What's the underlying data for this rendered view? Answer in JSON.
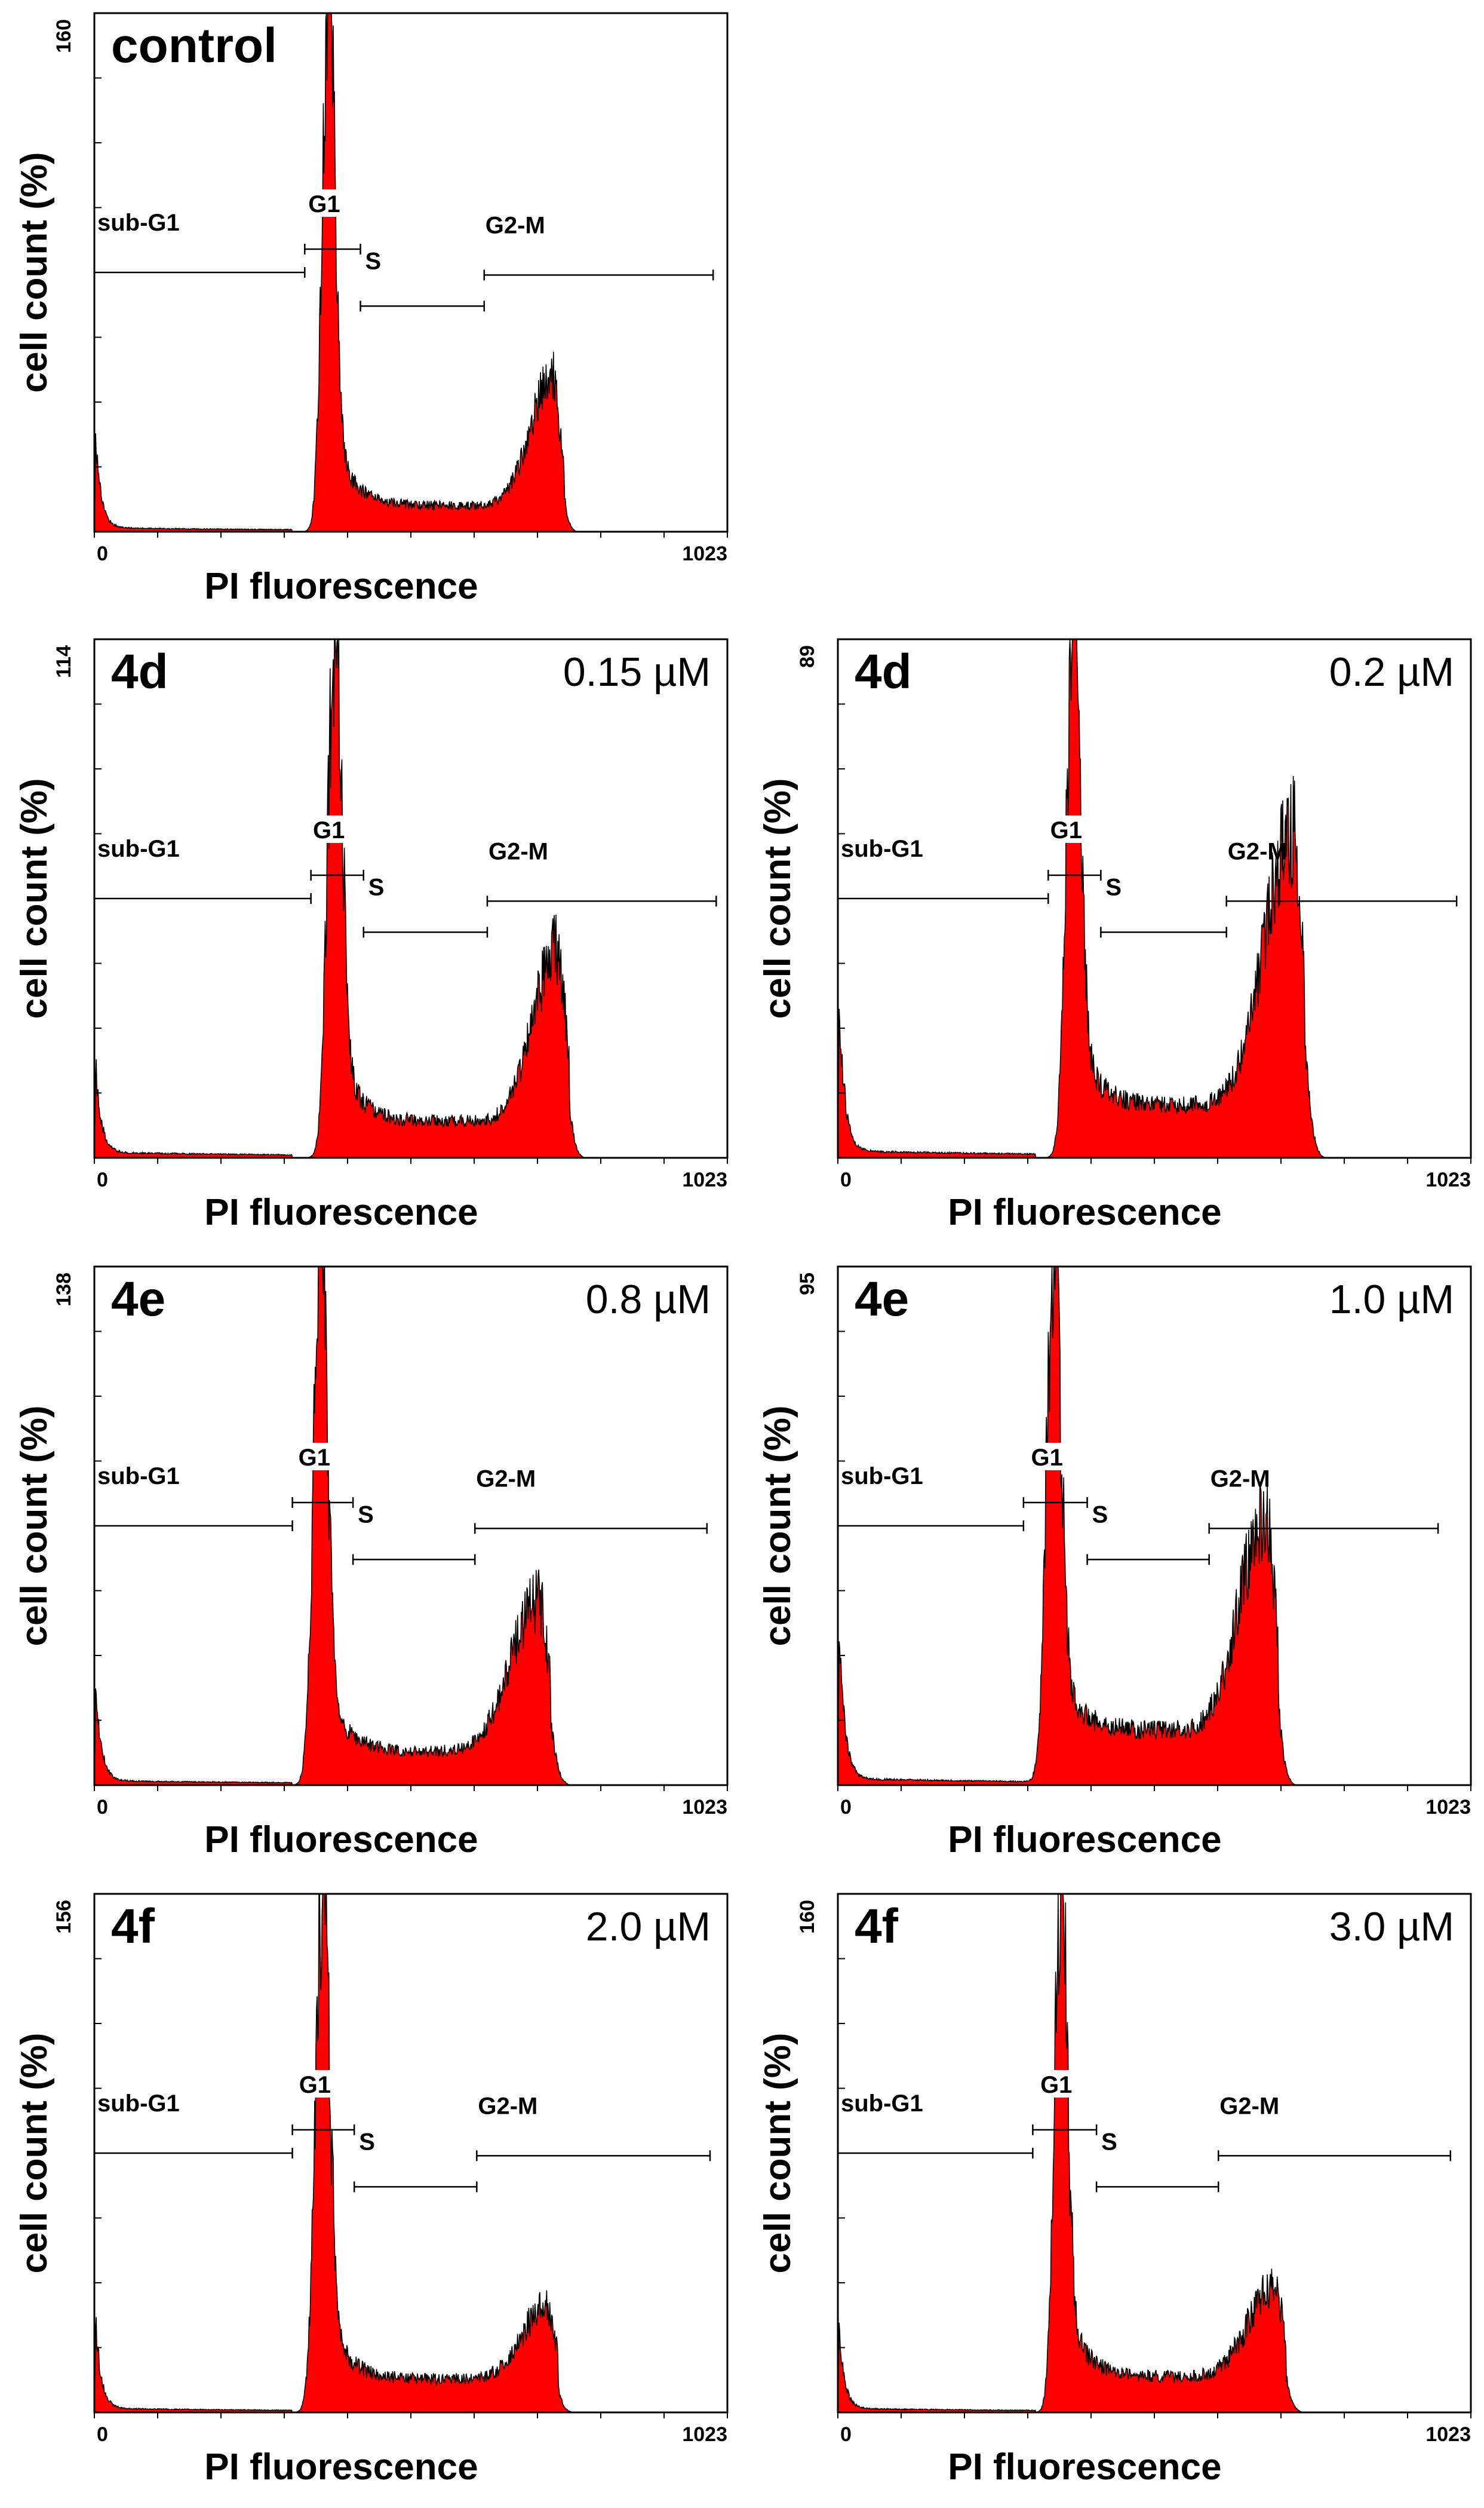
{
  "figure": {
    "description_axis_common": "PI fluorescence histogram panels"
  },
  "chart_data": [
    {
      "type": "histogram",
      "id": "control",
      "label": "control",
      "concentration": "",
      "xlabel": "PI fluorescence",
      "ylabel": "cell count (%)",
      "x_tick_labels": [
        "0",
        "1023"
      ],
      "xlim": [
        0,
        1023
      ],
      "y_max_label": "160",
      "ylim": [
        0,
        160
      ],
      "gate_labels": [
        "sub-G1",
        "G1",
        "S",
        "G2-M"
      ],
      "gates": {
        "subG1": [
          0,
          340
        ],
        "G1": [
          340,
          430
        ],
        "S": [
          430,
          630
        ],
        "G2M": [
          630,
          1000
        ]
      },
      "profile": {
        "debris": 36,
        "g1_pos": 378,
        "g1_height": 160,
        "g1_width": 10,
        "g2_pos": 740,
        "g2_height": 40,
        "g2_width": 22,
        "s_level": 8
      },
      "series_color": "#ff0000"
    },
    {
      "type": "histogram",
      "id": "4d-015",
      "label": "4d",
      "concentration": "0.15 µM",
      "xlabel": "PI fluorescence",
      "ylabel": "cell count (%)",
      "x_tick_labels": [
        "0",
        "1023"
      ],
      "xlim": [
        0,
        1023
      ],
      "y_max_label": "114",
      "ylim": [
        0,
        114
      ],
      "gate_labels": [
        "sub-G1",
        "G1",
        "S",
        "G2-M"
      ],
      "gates": {
        "subG1": [
          0,
          350
        ],
        "G1": [
          350,
          435
        ],
        "S": [
          435,
          635
        ],
        "G2M": [
          635,
          1005
        ]
      },
      "profile": {
        "debris": 25,
        "g1_pos": 388,
        "g1_height": 114,
        "g1_width": 11,
        "g2_pos": 748,
        "g2_height": 38,
        "g2_width": 24,
        "s_level": 8
      },
      "series_color": "#ff0000"
    },
    {
      "type": "histogram",
      "id": "4d-02",
      "label": "4d",
      "concentration": "0.2 µM",
      "xlabel": "PI fluorescence",
      "ylabel": "cell count (%)",
      "x_tick_labels": [
        "0",
        "1023"
      ],
      "xlim": [
        0,
        1023
      ],
      "y_max_label": "89",
      "ylim": [
        0,
        89
      ],
      "gate_labels": [
        "sub-G1",
        "G1",
        "S",
        "G2-M"
      ],
      "gates": {
        "subG1": [
          0,
          340
        ],
        "G1": [
          340,
          425
        ],
        "S": [
          425,
          628
        ],
        "G2M": [
          628,
          1000
        ]
      },
      "profile": {
        "debris": 33,
        "g1_pos": 380,
        "g1_height": 89,
        "g1_width": 11,
        "g2_pos": 735,
        "g2_height": 47,
        "g2_width": 28,
        "s_level": 9
      },
      "series_color": "#ff0000"
    },
    {
      "type": "histogram",
      "id": "4e-08",
      "label": "4e",
      "concentration": "0.8 µM",
      "xlabel": "PI fluorescence",
      "ylabel": "cell count (%)",
      "x_tick_labels": [
        "0",
        "1023"
      ],
      "xlim": [
        0,
        1023
      ],
      "y_max_label": "138",
      "ylim": [
        0,
        138
      ],
      "gate_labels": [
        "sub-G1",
        "G1",
        "S",
        "G2-M"
      ],
      "gates": {
        "subG1": [
          0,
          320
        ],
        "G1": [
          320,
          418
        ],
        "S": [
          418,
          615
        ],
        "G2M": [
          615,
          990
        ]
      },
      "profile": {
        "debris": 33,
        "g1_pos": 365,
        "g1_height": 138,
        "g1_width": 11,
        "g2_pos": 718,
        "g2_height": 40,
        "g2_width": 28,
        "s_level": 9
      },
      "series_color": "#ff0000"
    },
    {
      "type": "histogram",
      "id": "4e-10",
      "label": "4e",
      "concentration": "1.0 µM",
      "xlabel": "PI fluorescence",
      "ylabel": "cell count (%)",
      "x_tick_labels": [
        "0",
        "1023"
      ],
      "xlim": [
        0,
        1023
      ],
      "y_max_label": "95",
      "ylim": [
        0,
        95
      ],
      "gate_labels": [
        "sub-G1",
        "G1",
        "S",
        "G2-M"
      ],
      "gates": {
        "subG1": [
          0,
          300
        ],
        "G1": [
          300,
          403
        ],
        "S": [
          403,
          600
        ],
        "G2M": [
          600,
          970
        ]
      },
      "profile": {
        "debris": 35,
        "g1_pos": 348,
        "g1_height": 95,
        "g1_width": 11,
        "g2_pos": 692,
        "g2_height": 40,
        "g2_width": 26,
        "s_level": 10
      },
      "series_color": "#ff0000"
    },
    {
      "type": "histogram",
      "id": "4f-20",
      "label": "4f",
      "concentration": "2.0 µM",
      "xlabel": "PI fluorescence",
      "ylabel": "cell count (%)",
      "x_tick_labels": [
        "0",
        "1023"
      ],
      "xlim": [
        0,
        1023
      ],
      "y_max_label": "156",
      "ylim": [
        0,
        156
      ],
      "gate_labels": [
        "sub-G1",
        "G1",
        "S",
        "G2-M"
      ],
      "gates": {
        "subG1": [
          0,
          320
        ],
        "G1": [
          320,
          420
        ],
        "S": [
          420,
          618
        ],
        "G2M": [
          618,
          995
        ]
      },
      "profile": {
        "debris": 34,
        "g1_pos": 368,
        "g1_height": 156,
        "g1_width": 11,
        "g2_pos": 730,
        "g2_height": 22,
        "g2_width": 24,
        "s_level": 10
      },
      "series_color": "#ff0000"
    },
    {
      "type": "histogram",
      "id": "4f-30",
      "label": "4f",
      "concentration": "3.0 µM",
      "xlabel": "PI fluorescence",
      "ylabel": "cell count (%)",
      "x_tick_labels": [
        "0",
        "1023"
      ],
      "xlim": [
        0,
        1023
      ],
      "y_max_label": "160",
      "ylim": [
        0,
        160
      ],
      "gate_labels": [
        "sub-G1",
        "G1",
        "S",
        "G2-M"
      ],
      "gates": {
        "subG1": [
          0,
          315
        ],
        "G1": [
          315,
          418
        ],
        "S": [
          418,
          615
        ],
        "G2M": [
          615,
          990
        ]
      },
      "profile": {
        "debris": 30,
        "g1_pos": 360,
        "g1_height": 160,
        "g1_width": 10,
        "g2_pos": 705,
        "g2_height": 28,
        "g2_width": 26,
        "s_level": 11
      },
      "series_color": "#ff0000"
    }
  ]
}
